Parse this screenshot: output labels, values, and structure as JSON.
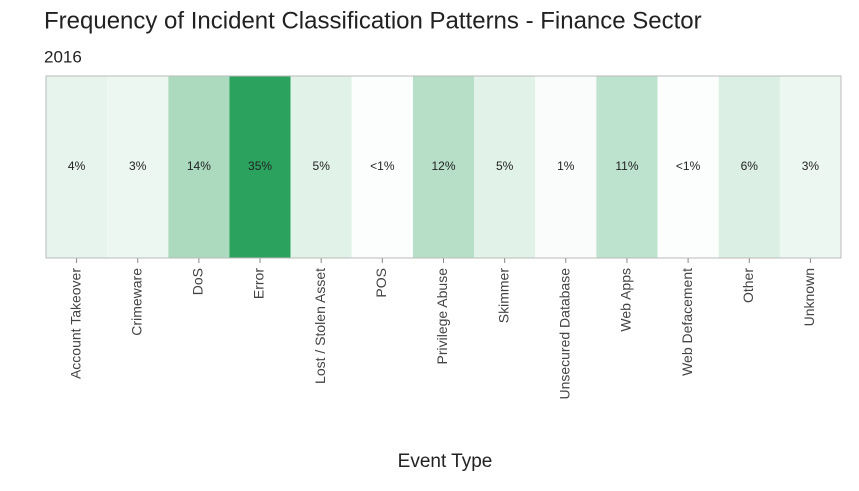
{
  "chart_data": {
    "type": "heatmap",
    "title": "Frequency of Incident Classification Patterns - Finance Sector",
    "subtitle": "2016",
    "x_label": "Event Type",
    "categories": [
      "Account Takeover",
      "Crimeware",
      "DoS",
      "Error",
      "Lost / Stolen Asset",
      "POS",
      "Privilege Abuse",
      "Skimmer",
      "Unsecured Database",
      "Web Apps",
      "Web Defacement",
      "Other",
      "Unknown"
    ],
    "values": [
      4,
      3,
      14,
      35,
      5,
      0.5,
      12,
      5,
      1,
      11,
      0.5,
      6,
      3
    ],
    "value_labels": [
      "4%",
      "3%",
      "14%",
      "35%",
      "5%",
      "<1%",
      "12%",
      "5%",
      "1%",
      "11%",
      "<1%",
      "6%",
      "3%"
    ],
    "color_range": [
      "#ffffff",
      "#2ca25f"
    ]
  }
}
